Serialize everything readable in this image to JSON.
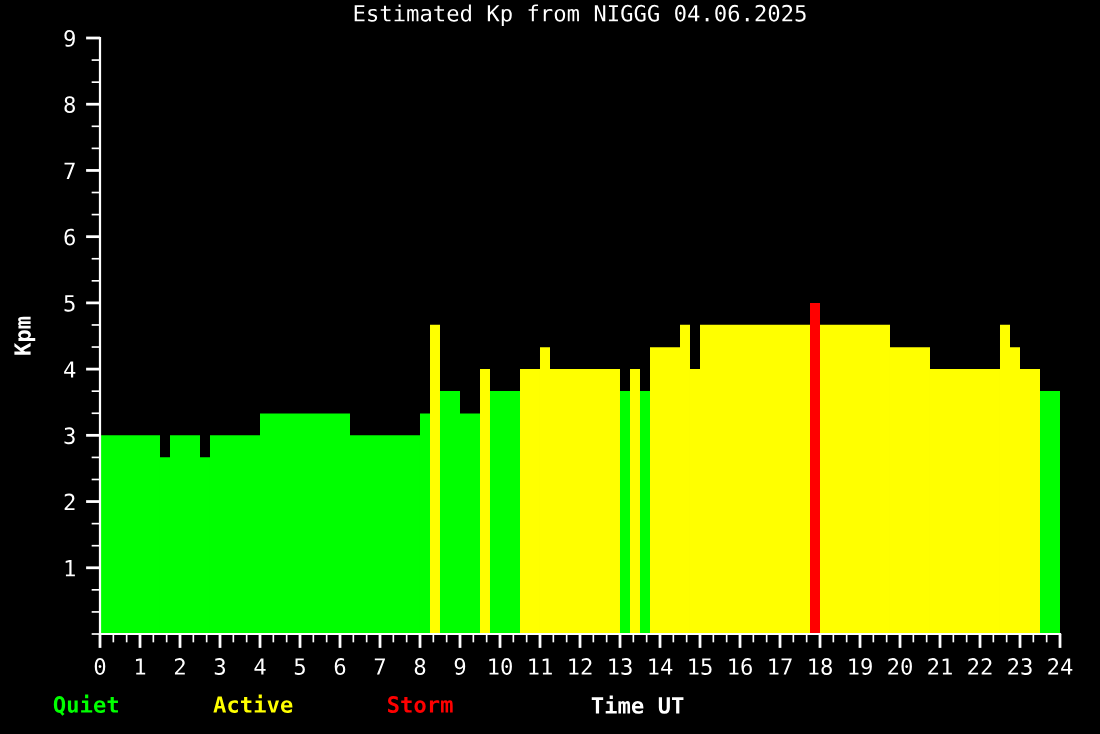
{
  "chart_data": {
    "type": "histogram",
    "title": "Estimated Kp from NIGGG 04.06.2025",
    "xlabel": "Time UT",
    "ylabel": "Kpm",
    "bins": [
      0,
      1.5,
      1.75,
      2.5,
      2.75,
      4,
      6.25,
      8,
      8.25,
      8.5,
      9,
      9.5,
      9.75,
      10.5,
      11,
      11.25,
      13,
      13.25,
      13.5,
      13.75,
      14.5,
      14.75,
      15,
      17.75,
      18,
      19.75,
      20.75,
      22.5,
      22.75,
      23,
      23.5,
      24
    ],
    "series": [
      {
        "name": "Quiet",
        "color": "#00ff00",
        "values": [
          3,
          2.67,
          3,
          2.67,
          3,
          3.33,
          3,
          3.33,
          null,
          3.67,
          3.33,
          null,
          3.67,
          null,
          null,
          null,
          3.67,
          null,
          3.67,
          null,
          null,
          null,
          null,
          null,
          null,
          null,
          null,
          null,
          null,
          null,
          3.67
        ]
      },
      {
        "name": "Active",
        "color": "#ffff00",
        "values": [
          null,
          null,
          null,
          null,
          null,
          null,
          null,
          null,
          4.67,
          null,
          null,
          4,
          null,
          4,
          4.33,
          4,
          null,
          4,
          null,
          4.33,
          4.67,
          4,
          4.67,
          null,
          4.67,
          4.33,
          4,
          4.67,
          4.33,
          4,
          null
        ]
      },
      {
        "name": "Storm",
        "color": "#ff0000",
        "values": [
          null,
          null,
          null,
          null,
          null,
          null,
          null,
          null,
          null,
          null,
          null,
          null,
          null,
          null,
          null,
          null,
          null,
          null,
          null,
          null,
          null,
          null,
          null,
          5,
          null,
          null,
          null,
          null,
          null,
          null,
          null
        ]
      }
    ],
    "xlim": [
      0,
      24
    ],
    "xticks": [
      0,
      1,
      2,
      3,
      4,
      5,
      6,
      7,
      8,
      9,
      10,
      11,
      12,
      13,
      14,
      15,
      16,
      17,
      18,
      19,
      20,
      21,
      22,
      23,
      24
    ],
    "ylim": [
      0,
      9
    ],
    "yticks": [
      1,
      2,
      3,
      4,
      5,
      6,
      7,
      8,
      9
    ],
    "legend": "bottom left",
    "grid": false
  }
}
